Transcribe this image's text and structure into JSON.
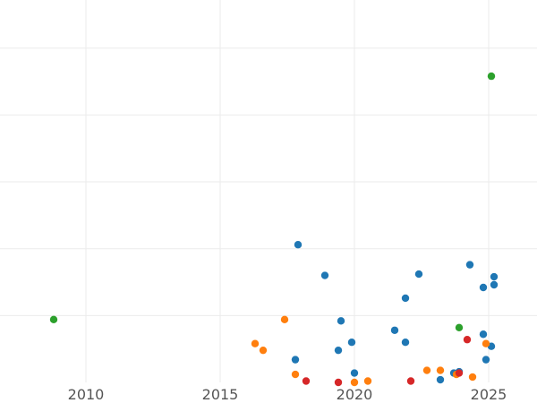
{
  "chart_data": {
    "type": "scatter",
    "title": "",
    "xlabel": "",
    "ylabel": "",
    "xlim": [
      2006.8,
      2026.8
    ],
    "ylim": [
      0,
      28.6
    ],
    "grid": true,
    "legend": "none",
    "x_ticks": [
      {
        "value": 2010,
        "label": "2010"
      },
      {
        "value": 2015,
        "label": "2015"
      },
      {
        "value": 2020,
        "label": "2020"
      },
      {
        "value": 2025,
        "label": "2025"
      }
    ],
    "y_grid": [
      5,
      10,
      15,
      20,
      25
    ],
    "series": [
      {
        "color": "#1f77b4",
        "points": [
          [
            2017.9,
            10.3
          ],
          [
            2018.9,
            8.0
          ],
          [
            2019.5,
            4.6
          ],
          [
            2019.9,
            3.0
          ],
          [
            2019.4,
            2.4
          ],
          [
            2017.8,
            1.7
          ],
          [
            2020.0,
            0.7
          ],
          [
            2021.5,
            3.9
          ],
          [
            2021.9,
            6.3
          ],
          [
            2021.9,
            3.0
          ],
          [
            2022.4,
            8.1
          ],
          [
            2023.2,
            0.2
          ],
          [
            2023.7,
            0.7
          ],
          [
            2023.9,
            0.8
          ],
          [
            2024.3,
            8.8
          ],
          [
            2024.8,
            7.1
          ],
          [
            2024.8,
            3.6
          ],
          [
            2024.9,
            1.7
          ],
          [
            2025.1,
            2.7
          ],
          [
            2025.2,
            7.9
          ],
          [
            2025.2,
            7.3
          ]
        ]
      },
      {
        "color": "#ff7f0e",
        "points": [
          [
            2016.3,
            2.9
          ],
          [
            2016.6,
            2.4
          ],
          [
            2017.4,
            4.7
          ],
          [
            2017.8,
            0.6
          ],
          [
            2020.0,
            0.0
          ],
          [
            2020.5,
            0.1
          ],
          [
            2022.7,
            0.9
          ],
          [
            2023.2,
            0.9
          ],
          [
            2023.8,
            0.6
          ],
          [
            2024.4,
            0.4
          ],
          [
            2024.9,
            2.9
          ]
        ]
      },
      {
        "color": "#2ca02c",
        "points": [
          [
            2008.8,
            4.7
          ],
          [
            2023.9,
            4.1
          ],
          [
            2025.1,
            22.9
          ]
        ]
      },
      {
        "color": "#d62728",
        "points": [
          [
            2018.2,
            0.1
          ],
          [
            2019.4,
            0.0
          ],
          [
            2022.1,
            0.1
          ],
          [
            2023.9,
            0.7
          ],
          [
            2024.2,
            3.2
          ]
        ]
      }
    ]
  }
}
